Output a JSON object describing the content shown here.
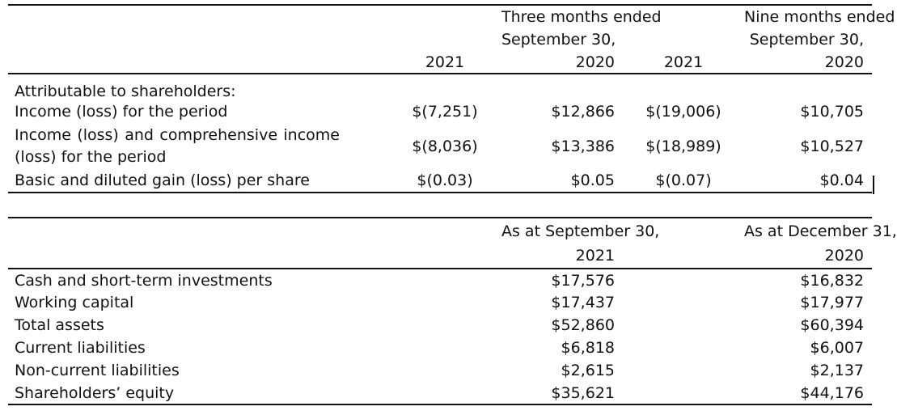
{
  "income_table": {
    "header": {
      "three_months_line1": "Three months ended",
      "three_months_line2": "September 30,",
      "nine_months_line1": "Nine months ended",
      "nine_months_line2": "September 30,",
      "col1_year": "2021",
      "col2_year": "2020",
      "col3_year": "2021",
      "col4_year": "2020"
    },
    "section_label": "Attributable to shareholders:",
    "rows": [
      {
        "label": "Income (loss) for the period",
        "v1": "$(7,251)",
        "v2": "$12,866",
        "v3": "$(19,006)",
        "v4": "$10,705"
      },
      {
        "label": "Income (loss) and comprehensive income (loss) for the period",
        "v1": "$(8,036)",
        "v2": "$13,386",
        "v3": "$(18,989)",
        "v4": "$10,527"
      },
      {
        "label": "Basic and diluted gain (loss) per share",
        "v1": "$(0.03)",
        "v2": "$0.05",
        "v3": "$(0.07)",
        "v4": "$0.04"
      }
    ]
  },
  "balance_table": {
    "header": {
      "col1_line1": "As at September 30,",
      "col1_line2": "2021",
      "col2_line1": "As at December 31,",
      "col2_line2": "2020"
    },
    "rows": [
      {
        "label": "Cash and short-term investments",
        "v1": "$17,576",
        "v2": "$16,832"
      },
      {
        "label": "Working capital",
        "v1": "$17,437",
        "v2": "$17,977"
      },
      {
        "label": "Total assets",
        "v1": "$52,860",
        "v2": "$60,394"
      },
      {
        "label": "Current liabilities",
        "v1": "$6,818",
        "v2": "$6,007"
      },
      {
        "label": "Non-current liabilities",
        "v1": "$2,615",
        "v2": "$2,137"
      },
      {
        "label": "Shareholders’ equity",
        "v1": "$35,621",
        "v2": "$44,176"
      }
    ]
  }
}
